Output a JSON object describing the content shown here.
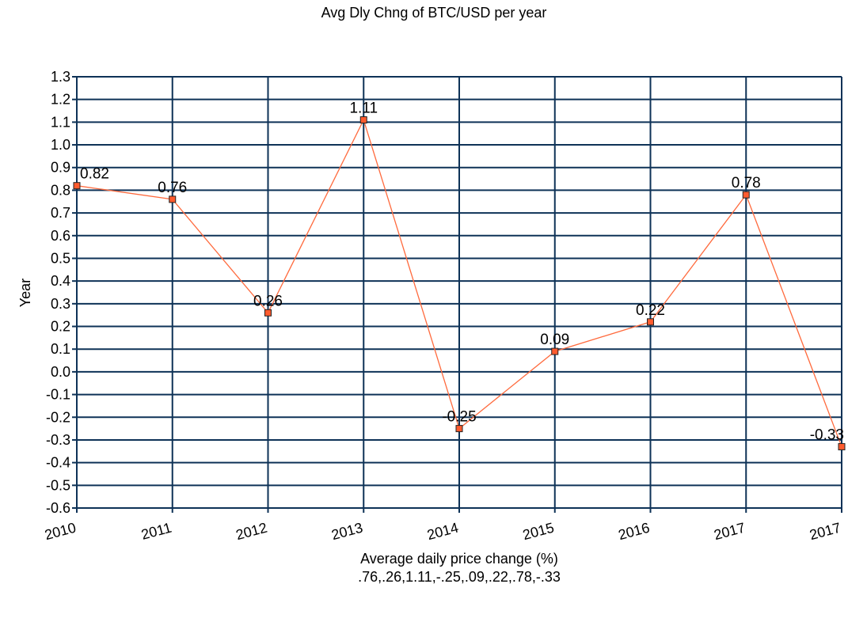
{
  "chart_data": {
    "type": "line",
    "title": "Avg Dly Chng of BTC/USD per year",
    "xlabel": "Average daily price change (%)",
    "xlabel_sub": ".76,.26,1.11,-.25,.09,.22,.78,-.33",
    "ylabel": "Year",
    "categories": [
      "2010",
      "2011",
      "2012",
      "2013",
      "2014",
      "2015",
      "2016",
      "2017",
      "2017"
    ],
    "series": [
      {
        "values": [
          0.82,
          0.76,
          0.26,
          1.11,
          -0.25,
          0.09,
          0.22,
          0.78,
          -0.33
        ],
        "data_labels": [
          "0.82",
          "0.76",
          "0.26",
          "1.11",
          "-0.25",
          "0.09",
          "0.22",
          "0.78",
          "-0.33"
        ]
      }
    ],
    "ylim": [
      -0.6,
      1.3
    ],
    "ytick_step": 0.1,
    "yticks": [
      "-0.6",
      "-0.5",
      "-0.4",
      "-0.3",
      "-0.2",
      "-0.1",
      "0.0",
      "0.1",
      "0.2",
      "0.3",
      "0.4",
      "0.5",
      "0.6",
      "0.7",
      "0.8",
      "0.9",
      "1.0",
      "1.1",
      "1.2",
      "1.3"
    ],
    "grid": true,
    "colors": {
      "line": "#ff6a3d",
      "marker_fill": "#ff5b2e",
      "grid": "#0e3257"
    }
  }
}
